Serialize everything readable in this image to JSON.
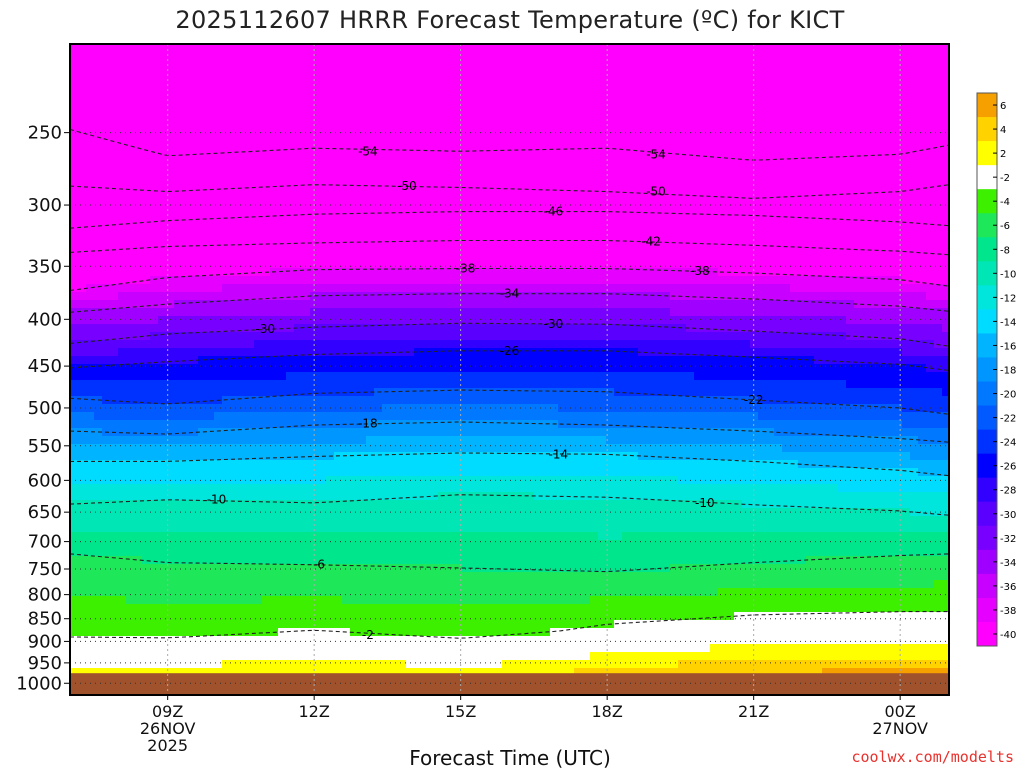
{
  "chart_data": {
    "type": "heatmap",
    "title": "2025112607 HRRR Forecast Temperature (ºC) for KICT",
    "xlabel": "Forecast Time (UTC)",
    "ylabel": "",
    "x_unit": "hours since 2025-11-26 06Z",
    "xlim": [
      7,
      25
    ],
    "x_ticks": [
      {
        "x": 9,
        "lines": [
          "09Z",
          "26NOV",
          "2025"
        ]
      },
      {
        "x": 12,
        "lines": [
          "12Z"
        ]
      },
      {
        "x": 15,
        "lines": [
          "15Z"
        ]
      },
      {
        "x": 18,
        "lines": [
          "18Z"
        ]
      },
      {
        "x": 21,
        "lines": [
          "21Z"
        ]
      },
      {
        "x": 24,
        "lines": [
          "00Z",
          "27NOV"
        ]
      }
    ],
    "y_unit": "hPa",
    "ylim": [
      1030,
      200
    ],
    "y_ticks": [
      250,
      300,
      350,
      400,
      450,
      500,
      550,
      600,
      650,
      700,
      750,
      800,
      850,
      900,
      950,
      1000
    ],
    "surface_pressure_hPa": 975,
    "grid": true,
    "colorbar": {
      "levels": [
        6,
        4,
        2,
        -2,
        -4,
        -6,
        -8,
        -10,
        -12,
        -14,
        -16,
        -18,
        -20,
        -22,
        -24,
        -26,
        -28,
        -30,
        -32,
        -34,
        -36,
        -38,
        -40
      ],
      "colors": [
        "#f6a000",
        "#ffd200",
        "#ffff00",
        "#ffffff",
        "#3cf000",
        "#1ee85a",
        "#00e68c",
        "#00e6b4",
        "#00e6dc",
        "#00dcff",
        "#00b4ff",
        "#0096ff",
        "#0078ff",
        "#005aff",
        "#0032ff",
        "#0000ff",
        "#3200ff",
        "#5a00ff",
        "#7800ff",
        "#a000ff",
        "#c800ff",
        "#e600ff",
        "#ff00ff"
      ],
      "placement": "right"
    },
    "ground_color": "#a0522d",
    "series": [
      {
        "value": -54,
        "x": [
          7,
          9,
          12,
          15,
          18,
          21,
          24,
          25
        ],
        "p": [
          248,
          265,
          260,
          262,
          260,
          268,
          264,
          258
        ]
      },
      {
        "value": -50,
        "x": [
          7,
          9,
          12,
          15,
          18,
          21,
          24,
          25
        ],
        "p": [
          286,
          290,
          285,
          287,
          290,
          295,
          290,
          285
        ]
      },
      {
        "value": -46,
        "x": [
          7,
          9,
          12,
          15,
          18,
          21,
          24,
          25
        ],
        "p": [
          318,
          312,
          307,
          305,
          305,
          308,
          313,
          316
        ]
      },
      {
        "value": -42,
        "x": [
          7,
          9,
          12,
          15,
          18,
          21,
          24,
          25
        ],
        "p": [
          338,
          333,
          330,
          328,
          328,
          332,
          337,
          340
        ]
      },
      {
        "value": -38,
        "x": [
          7,
          9,
          12,
          15,
          18,
          21,
          24,
          25
        ],
        "p": [
          372,
          360,
          353,
          352,
          352,
          356,
          362,
          368
        ]
      },
      {
        "value": -34,
        "x": [
          7,
          9,
          12,
          15,
          18,
          21,
          24,
          25
        ],
        "p": [
          393,
          385,
          377,
          375,
          375,
          380,
          387,
          392
        ]
      },
      {
        "value": -30,
        "x": [
          7,
          9,
          12,
          15,
          18,
          21,
          24,
          25
        ],
        "p": [
          425,
          415,
          408,
          404,
          405,
          412,
          420,
          428
        ]
      },
      {
        "value": -26,
        "x": [
          7,
          9,
          12,
          15,
          18,
          21,
          24,
          25
        ],
        "p": [
          452,
          445,
          437,
          433,
          433,
          440,
          448,
          455
        ]
      },
      {
        "value": -22,
        "x": [
          7,
          9,
          12,
          15,
          18,
          21,
          24,
          25
        ],
        "p": [
          488,
          495,
          482,
          478,
          480,
          490,
          500,
          508
        ]
      },
      {
        "value": -18,
        "x": [
          7,
          9,
          12,
          15,
          18,
          21,
          24,
          25
        ],
        "p": [
          530,
          534,
          522,
          518,
          522,
          530,
          540,
          545
        ]
      },
      {
        "value": -14,
        "x": [
          7,
          9,
          12,
          15,
          18,
          21,
          24,
          25
        ],
        "p": [
          572,
          572,
          565,
          560,
          562,
          572,
          585,
          593
        ]
      },
      {
        "value": -10,
        "x": [
          7,
          9,
          12,
          15,
          18,
          21,
          24,
          25
        ],
        "p": [
          637,
          630,
          635,
          622,
          626,
          638,
          648,
          655
        ]
      },
      {
        "value": -6,
        "x": [
          7,
          9,
          12,
          15,
          18,
          21,
          24,
          25
        ],
        "p": [
          722,
          738,
          742,
          748,
          755,
          738,
          725,
          722
        ]
      },
      {
        "value": -2,
        "x": [
          7,
          9,
          12,
          15,
          17,
          18,
          21,
          24,
          25
        ],
        "p": [
          890,
          892,
          875,
          893,
          877,
          862,
          842,
          835,
          835
        ]
      }
    ],
    "contour_labels": [
      {
        "text": "-54",
        "x": 13.1,
        "p": 262
      },
      {
        "text": "-54",
        "x": 19.0,
        "p": 264
      },
      {
        "text": "-50",
        "x": 13.9,
        "p": 286
      },
      {
        "text": "-50",
        "x": 19.0,
        "p": 290
      },
      {
        "text": "-46",
        "x": 16.9,
        "p": 305
      },
      {
        "text": "-42",
        "x": 18.9,
        "p": 329
      },
      {
        "text": "-38",
        "x": 15.1,
        "p": 352
      },
      {
        "text": "-38",
        "x": 19.9,
        "p": 354
      },
      {
        "text": "-34",
        "x": 16.0,
        "p": 375
      },
      {
        "text": "-30",
        "x": 11.0,
        "p": 410
      },
      {
        "text": "-30",
        "x": 16.9,
        "p": 405
      },
      {
        "text": "-26",
        "x": 16.0,
        "p": 433
      },
      {
        "text": "-22",
        "x": 21.0,
        "p": 490
      },
      {
        "text": "-18",
        "x": 13.1,
        "p": 520
      },
      {
        "text": "-14",
        "x": 17.0,
        "p": 562
      },
      {
        "text": "-10",
        "x": 10.0,
        "p": 630
      },
      {
        "text": "-10",
        "x": 20.0,
        "p": 635
      },
      {
        "text": "-6",
        "x": 12.1,
        "p": 742
      },
      {
        "text": "-2",
        "x": 13.1,
        "p": 886
      }
    ]
  },
  "credit": "coolwx.com/modelts"
}
